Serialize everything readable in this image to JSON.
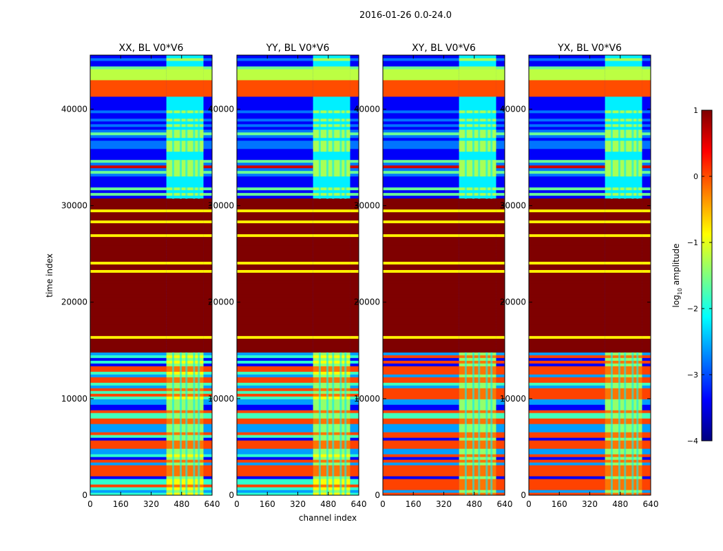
{
  "suptitle": "2016-01-26 0.0-24.0",
  "chart_data": {
    "type": "heatmap",
    "xlabel": "channel index",
    "ylabel": "time index",
    "xlim": [
      0,
      640
    ],
    "ylim": [
      0,
      45600
    ],
    "xticks": [
      0,
      160,
      320,
      480,
      640
    ],
    "yticks": [
      0,
      10000,
      20000,
      30000,
      40000
    ],
    "panels": [
      {
        "title": "XX, BL V0*V6",
        "pol": "XX"
      },
      {
        "title": "YY, BL V0*V6",
        "pol": "YY"
      },
      {
        "title": "XY, BL V0*V6",
        "pol": "XY"
      },
      {
        "title": "YX, BL V0*V6",
        "pol": "YX"
      }
    ],
    "colorbar": {
      "label": "log10 amplitude",
      "label_base": "log",
      "label_sub": "10",
      "label_rest": " amplitude",
      "vmin": -4,
      "vmax": 1,
      "ticks": [
        1,
        0,
        -1,
        -2,
        -3,
        -4
      ],
      "tick_labels": [
        "1",
        "0",
        "−1",
        "−2",
        "−3",
        "−4"
      ],
      "colormap": "jet",
      "stops": [
        "#00007f",
        "#0000ff",
        "#007fff",
        "#00ffff",
        "#7fff7f",
        "#ffff00",
        "#ff7f00",
        "#ff0000",
        "#7f0000"
      ]
    },
    "regions": [
      {
        "t0": 30700,
        "t1": 45600,
        "level": "mixed-low",
        "note": "noisy low-amplitude rows; channels ~400-600 moderate"
      },
      {
        "t0": 41200,
        "t1": 42900,
        "level": 0.0,
        "note": "orange band"
      },
      {
        "t0": 42900,
        "t1": 44200,
        "level": -1.2,
        "note": "green band"
      },
      {
        "t0": 14800,
        "t1": 30700,
        "level": 1.0,
        "note": "saturated dark red with thin yellow lines"
      },
      {
        "t0": 0,
        "t1": 14800,
        "level": "mixed",
        "note": "mixed amplitude rows; channels ~400-600 moderate"
      }
    ]
  }
}
